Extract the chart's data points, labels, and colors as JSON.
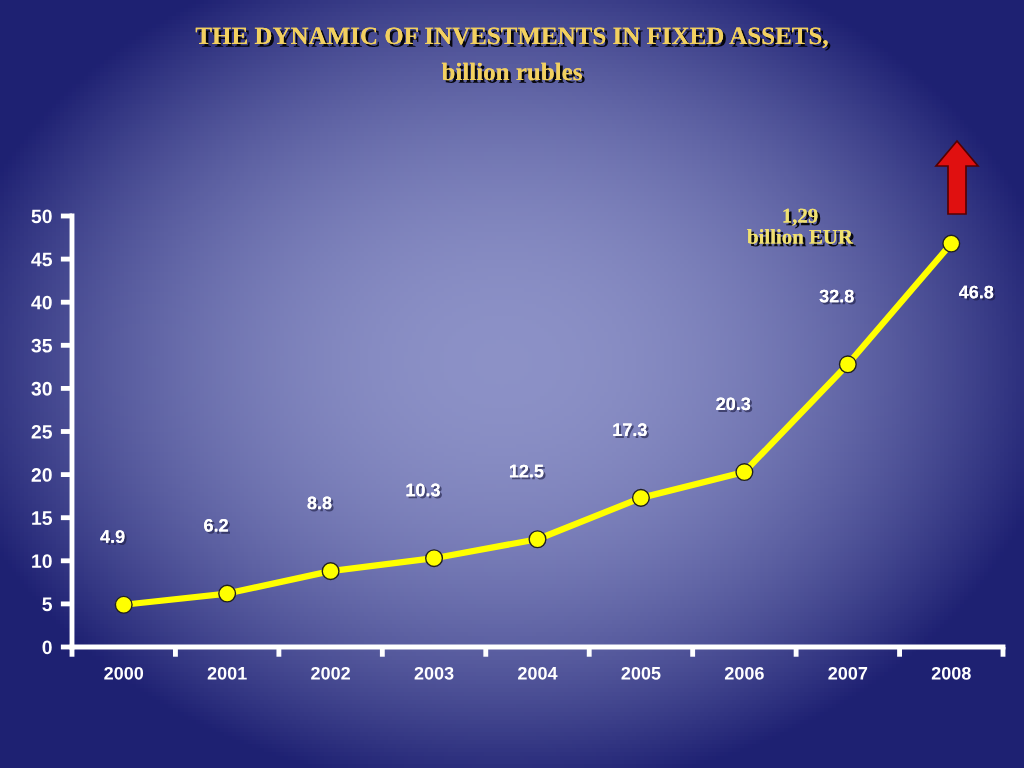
{
  "chart_data": {
    "type": "line",
    "title": "THE DYNAMIC OF INVESTMENTS IN FIXED ASSETS,",
    "subtitle": "billion rubles",
    "categories": [
      "2000",
      "2001",
      "2002",
      "2003",
      "2004",
      "2005",
      "2006",
      "2007",
      "2008"
    ],
    "series": [
      {
        "color": "#ffff00",
        "values": [
          4.9,
          6.2,
          8.8,
          10.3,
          12.5,
          17.3,
          20.3,
          32.8,
          46.8
        ]
      }
    ],
    "ylim": [
      0,
      50
    ],
    "yticks": [
      0,
      5,
      10,
      15,
      20,
      25,
      30,
      35,
      40,
      45,
      50
    ],
    "grid": false,
    "marker": "circle",
    "line_style": "solid",
    "data_labels": true,
    "annotations": [
      "1,29\nbillion EUR"
    ]
  }
}
